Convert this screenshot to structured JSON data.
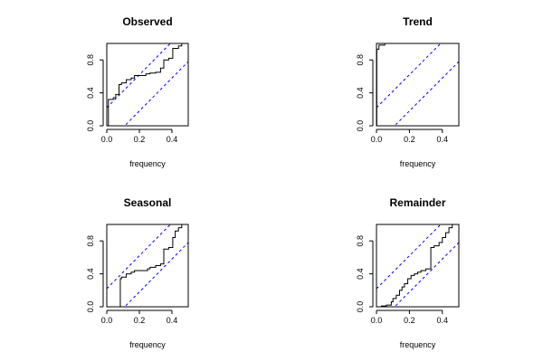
{
  "chart_data": [
    {
      "type": "line",
      "title": "Observed",
      "xlabel": "frequency",
      "ylabel": "",
      "xlim": [
        0,
        0.5
      ],
      "ylim": [
        0,
        1
      ],
      "xticks": [
        "0.0",
        "0.2",
        "0.4"
      ],
      "yticks": [
        "0.0",
        "0.4",
        "0.8"
      ],
      "grid": false,
      "series": [
        {
          "style": "step",
          "color": "#000000",
          "x": [
            0,
            0.01,
            0.01,
            0.04,
            0.04,
            0.055,
            0.055,
            0.075,
            0.075,
            0.09,
            0.09,
            0.12,
            0.12,
            0.15,
            0.15,
            0.17,
            0.17,
            0.24,
            0.24,
            0.265,
            0.265,
            0.3,
            0.3,
            0.33,
            0.33,
            0.35,
            0.35,
            0.38,
            0.38,
            0.405,
            0.405,
            0.44,
            0.44,
            0.46,
            0.46,
            0.5
          ],
          "y": [
            0,
            0,
            0.32,
            0.32,
            0.34,
            0.34,
            0.38,
            0.38,
            0.5,
            0.5,
            0.52,
            0.52,
            0.56,
            0.56,
            0.58,
            0.58,
            0.61,
            0.61,
            0.63,
            0.63,
            0.64,
            0.64,
            0.65,
            0.65,
            0.7,
            0.7,
            0.8,
            0.8,
            0.82,
            0.82,
            0.94,
            0.94,
            0.97,
            0.97,
            1.0,
            1.0
          ]
        }
      ],
      "bands": [
        {
          "style": "dashed",
          "color": "#0000ff",
          "x": [
            0,
            0.5
          ],
          "y": [
            0.22,
            1.22
          ]
        },
        {
          "style": "dashed",
          "color": "#0000ff",
          "x": [
            0,
            0.5
          ],
          "y": [
            -0.22,
            0.78
          ]
        }
      ]
    },
    {
      "type": "line",
      "title": "Trend",
      "xlabel": "frequency",
      "ylabel": "",
      "xlim": [
        0,
        0.5
      ],
      "ylim": [
        0,
        1
      ],
      "xticks": [
        "0.0",
        "0.2",
        "0.4"
      ],
      "yticks": [
        "0.0",
        "0.4",
        "0.8"
      ],
      "grid": false,
      "series": [
        {
          "style": "step",
          "color": "#000000",
          "x": [
            0,
            0.002,
            0.002,
            0.015,
            0.015,
            0.05,
            0.05,
            0.5
          ],
          "y": [
            0,
            0,
            0.93,
            0.93,
            0.98,
            0.98,
            1.0,
            1.0
          ]
        }
      ],
      "bands": [
        {
          "style": "dashed",
          "color": "#0000ff",
          "x": [
            0,
            0.5
          ],
          "y": [
            0.22,
            1.22
          ]
        },
        {
          "style": "dashed",
          "color": "#0000ff",
          "x": [
            0,
            0.5
          ],
          "y": [
            -0.22,
            0.78
          ]
        }
      ]
    },
    {
      "type": "line",
      "title": "Seasonal",
      "xlabel": "frequency",
      "ylabel": "",
      "xlim": [
        0,
        0.5
      ],
      "ylim": [
        0,
        1
      ],
      "xticks": [
        "0.0",
        "0.2",
        "0.4"
      ],
      "yticks": [
        "0.0",
        "0.4",
        "0.8"
      ],
      "grid": false,
      "series": [
        {
          "style": "step",
          "color": "#000000",
          "x": [
            0,
            0.083,
            0.083,
            0.09,
            0.09,
            0.12,
            0.12,
            0.15,
            0.15,
            0.17,
            0.17,
            0.25,
            0.25,
            0.265,
            0.265,
            0.3,
            0.3,
            0.33,
            0.33,
            0.35,
            0.35,
            0.38,
            0.38,
            0.405,
            0.405,
            0.42,
            0.42,
            0.44,
            0.44,
            0.46,
            0.46,
            0.5
          ],
          "y": [
            0,
            0,
            0.34,
            0.34,
            0.36,
            0.36,
            0.4,
            0.4,
            0.42,
            0.42,
            0.44,
            0.44,
            0.46,
            0.46,
            0.48,
            0.48,
            0.5,
            0.5,
            0.52,
            0.52,
            0.7,
            0.7,
            0.72,
            0.72,
            0.84,
            0.84,
            0.92,
            0.92,
            0.96,
            0.96,
            1.0,
            1.0
          ]
        }
      ],
      "bands": [
        {
          "style": "dashed",
          "color": "#0000ff",
          "x": [
            0,
            0.5
          ],
          "y": [
            0.22,
            1.22
          ]
        },
        {
          "style": "dashed",
          "color": "#0000ff",
          "x": [
            0,
            0.5
          ],
          "y": [
            -0.22,
            0.78
          ]
        }
      ]
    },
    {
      "type": "line",
      "title": "Remainder",
      "xlabel": "frequency",
      "ylabel": "",
      "xlim": [
        0,
        0.5
      ],
      "ylim": [
        0,
        1
      ],
      "xticks": [
        "0.0",
        "0.2",
        "0.4"
      ],
      "yticks": [
        "0.0",
        "0.4",
        "0.8"
      ],
      "grid": false,
      "series": [
        {
          "style": "step",
          "color": "#000000",
          "x": [
            0,
            0.03,
            0.03,
            0.06,
            0.06,
            0.09,
            0.09,
            0.1,
            0.1,
            0.12,
            0.12,
            0.14,
            0.14,
            0.155,
            0.155,
            0.17,
            0.17,
            0.19,
            0.19,
            0.21,
            0.21,
            0.23,
            0.23,
            0.25,
            0.25,
            0.27,
            0.27,
            0.3,
            0.3,
            0.33,
            0.33,
            0.35,
            0.35,
            0.38,
            0.38,
            0.4,
            0.4,
            0.42,
            0.42,
            0.44,
            0.44,
            0.46,
            0.46,
            0.5
          ],
          "y": [
            0,
            0,
            0.01,
            0.01,
            0.02,
            0.02,
            0.06,
            0.06,
            0.1,
            0.1,
            0.14,
            0.14,
            0.2,
            0.2,
            0.24,
            0.24,
            0.28,
            0.28,
            0.34,
            0.34,
            0.38,
            0.38,
            0.4,
            0.4,
            0.42,
            0.42,
            0.44,
            0.44,
            0.46,
            0.46,
            0.72,
            0.72,
            0.74,
            0.74,
            0.78,
            0.78,
            0.84,
            0.84,
            0.9,
            0.9,
            0.96,
            0.96,
            1.0,
            1.0
          ]
        }
      ],
      "bands": [
        {
          "style": "dashed",
          "color": "#0000ff",
          "x": [
            0,
            0.5
          ],
          "y": [
            0.22,
            1.22
          ]
        },
        {
          "style": "dashed",
          "color": "#0000ff",
          "x": [
            0,
            0.5
          ],
          "y": [
            -0.22,
            0.78
          ]
        }
      ]
    }
  ]
}
